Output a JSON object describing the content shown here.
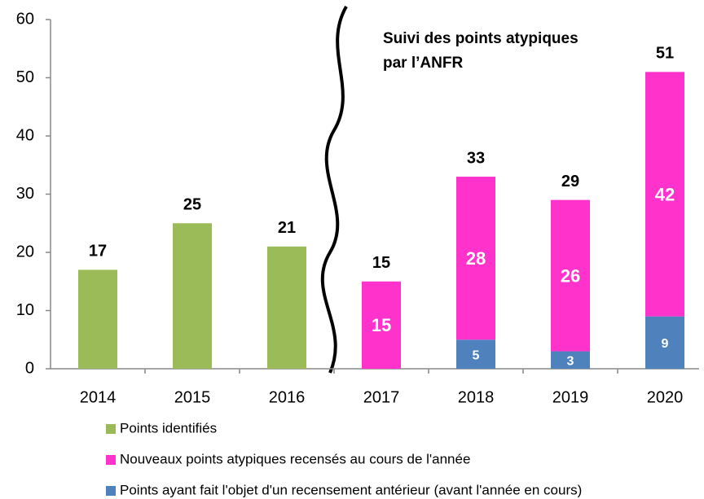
{
  "chart_data": {
    "type": "stacked_bar",
    "annotation": [
      "Suivi des points atypiques",
      "par  l’ANFR"
    ],
    "categories": [
      "2014",
      "2015",
      "2016",
      "2017",
      "2018",
      "2019",
      "2020"
    ],
    "series": [
      {
        "name": "Points identifiés",
        "color": "#9bbb59",
        "values": [
          17,
          25,
          21,
          null,
          null,
          null,
          null
        ]
      },
      {
        "name": "Nouveaux points atypiques recensés au cours de l'année",
        "color": "#ff33cc",
        "values": [
          null,
          null,
          null,
          15,
          28,
          26,
          42
        ]
      },
      {
        "name": "Points ayant fait l'objet d'un recensement antérieur (avant l'année en cours)",
        "color": "#4f81bd",
        "values": [
          null,
          null,
          null,
          null,
          5,
          3,
          9
        ]
      }
    ],
    "totals": [
      17,
      25,
      21,
      15,
      33,
      29,
      51
    ],
    "ylim": [
      0,
      60
    ],
    "yticks": [
      0,
      10,
      20,
      30,
      40,
      50,
      60
    ],
    "grid": false
  }
}
